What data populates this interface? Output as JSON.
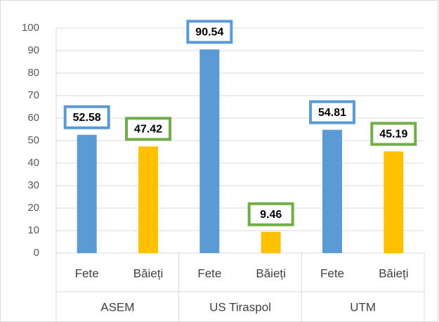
{
  "chart_data": {
    "type": "bar",
    "categories": [
      "Fete",
      "Băieți",
      "Fete",
      "Băieți",
      "Fete",
      "Băieți"
    ],
    "groups": [
      "ASEM",
      "US Tiraspol",
      "UTM"
    ],
    "values": [
      52.58,
      47.42,
      90.54,
      9.46,
      54.81,
      45.19
    ],
    "colors": [
      "#5b9bd5",
      "#ffc000",
      "#5b9bd5",
      "#ffc000",
      "#5b9bd5",
      "#ffc000"
    ],
    "label_border_colors": [
      "#5b9bd5",
      "#70ad47",
      "#5b9bd5",
      "#70ad47",
      "#5b9bd5",
      "#70ad47"
    ],
    "ylim": [
      0,
      100
    ],
    "yticks": [
      0,
      10,
      20,
      30,
      40,
      50,
      60,
      70,
      80,
      90,
      100
    ],
    "grid": true
  }
}
